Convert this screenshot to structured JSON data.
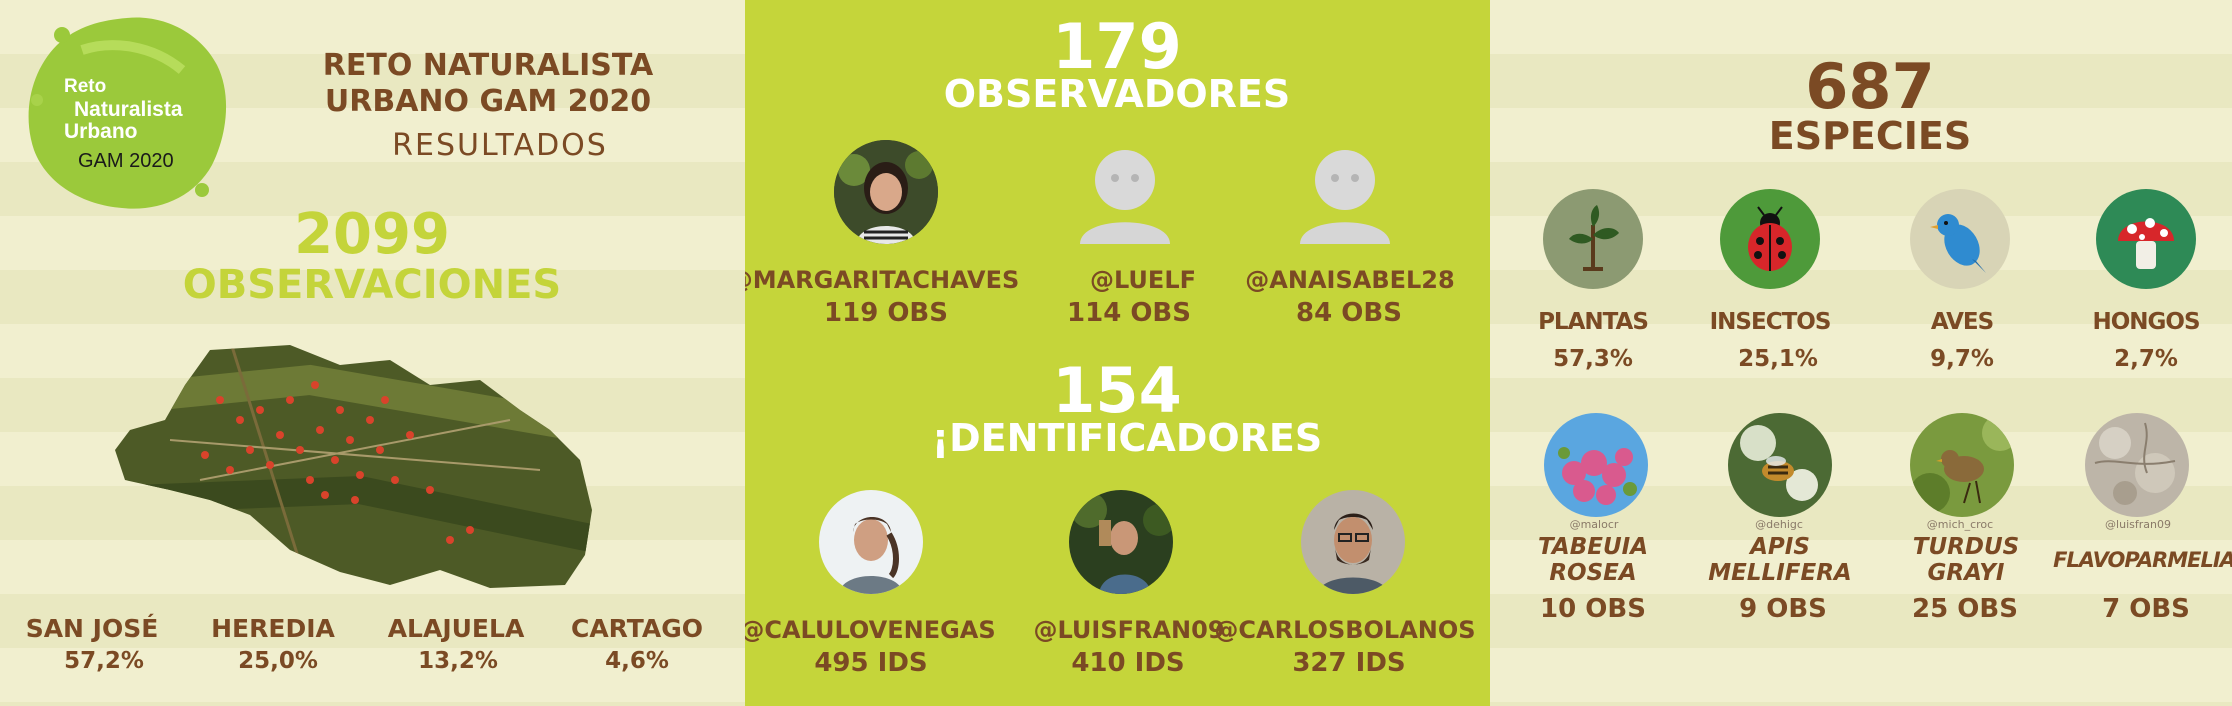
{
  "header": {
    "logo_line1": "Reto",
    "logo_line2": "Naturalista",
    "logo_line3": "Urbano",
    "logo_line4": "GAM 2020",
    "title_line1": "RETO NATURALISTA",
    "title_line2": "URBANO GAM 2020",
    "subtitle": "RESULTADOS"
  },
  "observations": {
    "count": "2099",
    "label": "OBSERVACIONES"
  },
  "regions": [
    {
      "name": "SAN JOSÉ",
      "pct": "57,2%"
    },
    {
      "name": "HEREDIA",
      "pct": "25,0%"
    },
    {
      "name": "ALAJUELA",
      "pct": "13,2%"
    },
    {
      "name": "CARTAGO",
      "pct": "4,6%"
    }
  ],
  "observers": {
    "count": "179",
    "label": "OBSERVADORES",
    "top": [
      {
        "user": "@MARGARITACHAVES",
        "stat": "119 OBS"
      },
      {
        "user": "@LUELF",
        "stat": "114 OBS"
      },
      {
        "user": "@ANAISABEL28",
        "stat": "84 OBS"
      }
    ]
  },
  "identifiers": {
    "count": "154",
    "label": "¡DENTIFICADORES",
    "top": [
      {
        "user": "@CALULOVENEGAS",
        "stat": "495 IDS"
      },
      {
        "user": "@LUISFRAN09",
        "stat": "410 IDS"
      },
      {
        "user": "@CARLOSBOLANOS",
        "stat": "327 IDS"
      }
    ]
  },
  "species": {
    "count": "687",
    "label": "ESPECIES",
    "groups": [
      {
        "name": "PLANTAS",
        "pct": "57,3%",
        "icon": "plant-icon",
        "color": "#8c9a72"
      },
      {
        "name": "INSECTOS",
        "pct": "25,1%",
        "icon": "ladybug-icon",
        "color": "#4e9a3a"
      },
      {
        "name": "AVES",
        "pct": "9,7%",
        "icon": "bird-icon",
        "color": "#d8d4b6"
      },
      {
        "name": "HONGOS",
        "pct": "2,7%",
        "icon": "mushroom-icon",
        "color": "#2e8a56"
      }
    ],
    "top": [
      {
        "credit": "@malocr",
        "name1": "TABEUIA",
        "name2": "ROSEA",
        "stat": "10 OBS"
      },
      {
        "credit": "@dehigc",
        "name1": "APIS",
        "name2": "MELLIFERA",
        "stat": "9 OBS"
      },
      {
        "credit": "@mich_croc",
        "name1": "TURDUS",
        "name2": "GRAYI",
        "stat": "25 OBS"
      },
      {
        "credit": "@luisfran09",
        "name1": "FLAVOPARMELIA",
        "name2": "",
        "stat": "7 OBS"
      }
    ]
  },
  "colors": {
    "brown": "#7b4a24",
    "lime": "#c5d53a",
    "cream": "#f1efcf"
  }
}
